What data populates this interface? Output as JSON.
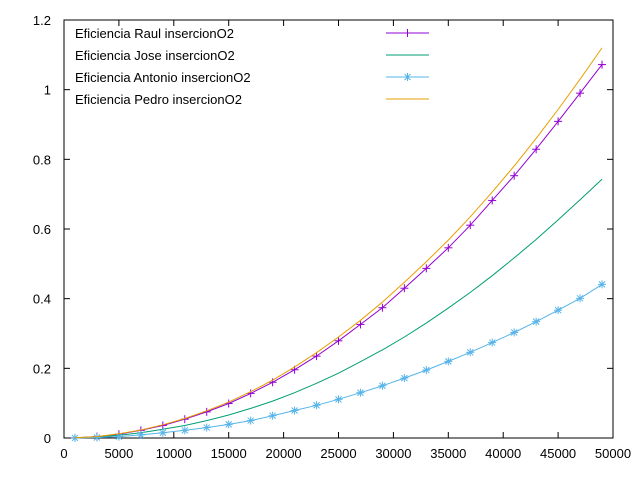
{
  "chart_data": {
    "type": "line",
    "title": "",
    "xlabel": "",
    "ylabel": "",
    "xlim": [
      0,
      50000
    ],
    "ylim": [
      0,
      1.2
    ],
    "xticks": [
      "0",
      "5000",
      "10000",
      "15000",
      "20000",
      "25000",
      "30000",
      "35000",
      "40000",
      "45000",
      "50000"
    ],
    "yticks": [
      "0",
      "0.2",
      "0.4",
      "0.6",
      "0.8",
      "1",
      "1.2"
    ],
    "grid": false,
    "legend_position": "top-left",
    "x": [
      1000,
      3000,
      5000,
      7000,
      9000,
      11000,
      13000,
      15000,
      17000,
      19000,
      21000,
      23000,
      25000,
      27000,
      29000,
      31000,
      33000,
      35000,
      37000,
      39000,
      41000,
      43000,
      45000,
      47000,
      49000
    ],
    "series": [
      {
        "name": "Eficiencia Raul insercionO2",
        "color": "#9400d3",
        "marker": "plus",
        "values": [
          0.0005,
          0.004,
          0.011,
          0.022,
          0.036,
          0.054,
          0.075,
          0.099,
          0.128,
          0.16,
          0.196,
          0.235,
          0.279,
          0.326,
          0.374,
          0.43,
          0.487,
          0.546,
          0.611,
          0.682,
          0.753,
          0.829,
          0.909,
          0.99,
          1.072
        ]
      },
      {
        "name": "Eficiencia Jose insercionO2",
        "color": "#009e73",
        "marker": "none",
        "values": [
          0.0003,
          0.003,
          0.008,
          0.015,
          0.025,
          0.036,
          0.05,
          0.066,
          0.085,
          0.106,
          0.13,
          0.157,
          0.186,
          0.219,
          0.253,
          0.29,
          0.33,
          0.373,
          0.418,
          0.466,
          0.517,
          0.57,
          0.626,
          0.684,
          0.743
        ]
      },
      {
        "name": "Eficiencia Antonio insercionO2",
        "color": "#56b4e9",
        "marker": "star",
        "values": [
          0.0002,
          0.0015,
          0.004,
          0.009,
          0.015,
          0.022,
          0.03,
          0.039,
          0.05,
          0.064,
          0.079,
          0.094,
          0.111,
          0.13,
          0.15,
          0.172,
          0.195,
          0.22,
          0.246,
          0.274,
          0.303,
          0.334,
          0.367,
          0.401,
          0.441
        ]
      },
      {
        "name": "Eficiencia Pedro insercionO2",
        "color": "#e69f00",
        "marker": "none",
        "values": [
          0.0005,
          0.004,
          0.012,
          0.023,
          0.038,
          0.056,
          0.078,
          0.103,
          0.133,
          0.166,
          0.204,
          0.245,
          0.29,
          0.338,
          0.39,
          0.447,
          0.506,
          0.568,
          0.635,
          0.706,
          0.781,
          0.86,
          0.943,
          1.03,
          1.12
        ]
      }
    ]
  }
}
